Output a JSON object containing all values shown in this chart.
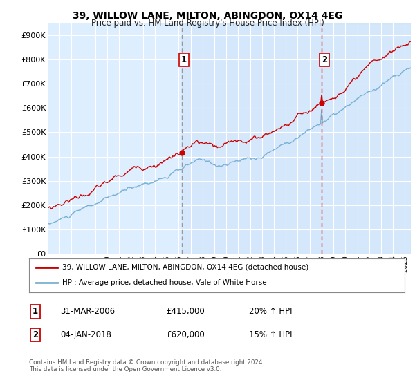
{
  "title": "39, WILLOW LANE, MILTON, ABINGDON, OX14 4EG",
  "subtitle": "Price paid vs. HM Land Registry's House Price Index (HPI)",
  "ylim": [
    0,
    950000
  ],
  "yticks": [
    0,
    100000,
    200000,
    300000,
    400000,
    500000,
    600000,
    700000,
    800000,
    900000
  ],
  "ytick_labels": [
    "£0",
    "£100K",
    "£200K",
    "£300K",
    "£400K",
    "£500K",
    "£600K",
    "£700K",
    "£800K",
    "£900K"
  ],
  "xstart_year": 1995,
  "xend_year": 2025,
  "sale1_date": 2006.25,
  "sale1_price": 415000,
  "sale1_label": "1",
  "sale2_date": 2018.02,
  "sale2_price": 620000,
  "sale2_label": "2",
  "legend_line1": "39, WILLOW LANE, MILTON, ABINGDON, OX14 4EG (detached house)",
  "legend_line2": "HPI: Average price, detached house, Vale of White Horse",
  "table_row1": [
    "1",
    "31-MAR-2006",
    "£415,000",
    "20% ↑ HPI"
  ],
  "table_row2": [
    "2",
    "04-JAN-2018",
    "£620,000",
    "15% ↑ HPI"
  ],
  "footer": "Contains HM Land Registry data © Crown copyright and database right 2024.\nThis data is licensed under the Open Government Licence v3.0.",
  "line_color_red": "#cc0000",
  "line_color_blue": "#7ab0d4",
  "vline1_color": "#aaaaaa",
  "vline2_color": "#cc0000",
  "background_plot": "#ddeeff",
  "background_fig": "#ffffff",
  "grid_color": "#ffffff"
}
